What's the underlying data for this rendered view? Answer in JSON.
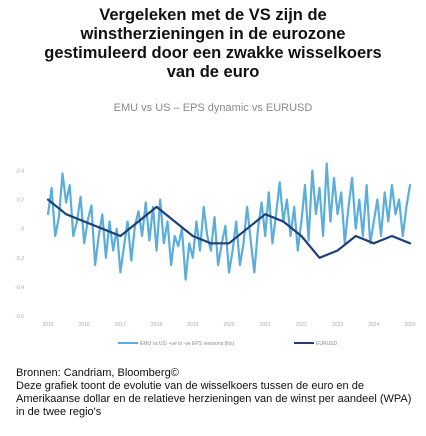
{
  "chart_data": {
    "type": "line",
    "title_lines": [
      "Vergeleken met de VS zijn de",
      "winstherzieningen in de eurozone",
      "gestimuleerd door een zwakke wisselkoers",
      "van de euro"
    ],
    "subtitle": "EMU vs US – EPS dynamic vs EURUSD",
    "x_tick_labels": [
      "2015",
      "2016",
      "2017",
      "2018",
      "2019",
      "2020",
      "2021",
      "2022",
      "2023",
      "2024",
      "2025"
    ],
    "xlim": [
      2015,
      2025
    ],
    "y_tick_labels": [
      "0.4",
      "0.2",
      "0",
      "-0.2",
      "-0.4",
      "-0.6"
    ],
    "ylim": [
      -0.6,
      0.5
    ],
    "colors": {
      "eps": "#5aaed9",
      "eurusd": "#1f3f7a"
    },
    "series": [
      {
        "name": "EMU vs US: +ve to -ve EPS revisions (lhs)",
        "x": [
          2015.0,
          2015.1,
          2015.2,
          2015.3,
          2015.4,
          2015.5,
          2015.6,
          2015.7,
          2015.8,
          2015.9,
          2016.0,
          2016.1,
          2016.2,
          2016.3,
          2016.4,
          2016.5,
          2016.6,
          2016.7,
          2016.8,
          2016.9,
          2017.0,
          2017.1,
          2017.2,
          2017.3,
          2017.4,
          2017.5,
          2017.6,
          2017.7,
          2017.8,
          2017.9,
          2018.0,
          2018.1,
          2018.2,
          2018.3,
          2018.4,
          2018.5,
          2018.6,
          2018.7,
          2018.8,
          2018.9,
          2019.0,
          2019.1,
          2019.2,
          2019.3,
          2019.4,
          2019.5,
          2019.6,
          2019.7,
          2019.8,
          2019.9,
          2020.0,
          2020.1,
          2020.2,
          2020.3,
          2020.4,
          2020.5,
          2020.6,
          2020.7,
          2020.8,
          2020.9,
          2021.0,
          2021.1,
          2021.2,
          2021.3,
          2021.4,
          2021.5,
          2021.6,
          2021.7,
          2021.8,
          2021.9,
          2022.0,
          2022.1,
          2022.2,
          2022.3,
          2022.4,
          2022.5,
          2022.6,
          2022.7,
          2022.8,
          2022.9,
          2023.0,
          2023.1,
          2023.2,
          2023.3,
          2023.4,
          2023.5,
          2023.6,
          2023.7,
          2023.8,
          2023.9,
          2024.0,
          2024.1,
          2024.2,
          2024.3,
          2024.4,
          2024.5,
          2024.6,
          2024.7,
          2024.8,
          2024.9,
          2025.0
        ],
        "y": [
          0.1,
          0.28,
          -0.05,
          0.08,
          0.38,
          0.18,
          0.3,
          -0.05,
          0.05,
          0.22,
          -0.1,
          0.06,
          0.16,
          -0.25,
          -0.05,
          0.1,
          -0.2,
          0.05,
          -0.15,
          0.0,
          -0.3,
          -0.12,
          0.05,
          -0.22,
          0.02,
          0.12,
          -0.05,
          0.18,
          -0.08,
          0.15,
          -0.15,
          0.2,
          -0.1,
          0.05,
          -0.25,
          -0.05,
          -0.12,
          0.0,
          -0.35,
          -0.1,
          -0.2,
          0.05,
          -0.15,
          0.15,
          -0.05,
          -0.15,
          0.08,
          -0.25,
          -0.1,
          0.02,
          -0.3,
          -0.15,
          0.05,
          -0.25,
          -0.1,
          0.15,
          -0.08,
          -0.3,
          0.0,
          0.18,
          -0.05,
          0.25,
          -0.1,
          0.1,
          0.32,
          0.05,
          0.2,
          -0.05,
          0.15,
          -0.15,
          0.05,
          0.3,
          -0.08,
          0.4,
          0.1,
          0.28,
          -0.05,
          0.45,
          0.05,
          0.35,
          0.1,
          0.25,
          -0.1,
          0.15,
          0.35,
          0.0,
          0.2,
          -0.05,
          0.3,
          -0.1,
          0.05,
          0.2,
          -0.05,
          0.25,
          0.05,
          0.3,
          0.1,
          0.2,
          -0.05,
          0.15,
          0.3
        ]
      },
      {
        "name": "EURUSD",
        "x": [
          2015.0,
          2015.5,
          2016.0,
          2016.5,
          2017.0,
          2017.5,
          2018.0,
          2018.5,
          2019.0,
          2019.5,
          2020.0,
          2020.5,
          2021.0,
          2021.5,
          2022.0,
          2022.5,
          2023.0,
          2023.5,
          2024.0,
          2024.5,
          2025.0
        ],
        "y": [
          0.2,
          0.1,
          0.05,
          0.0,
          -0.05,
          0.05,
          0.15,
          0.05,
          -0.05,
          -0.1,
          -0.1,
          0.0,
          0.1,
          0.05,
          -0.05,
          -0.2,
          -0.15,
          -0.05,
          -0.1,
          -0.05,
          -0.1
        ]
      }
    ]
  },
  "source": "Bronnen: Candriam, Bloomberg©",
  "caption": "Deze grafiek toont de evolutie van de wisselkoers tussen de euro en de Amerikaanse dollar en de relatieve herzieningen van de winst per aandeel (WPA) in de twee regio's"
}
